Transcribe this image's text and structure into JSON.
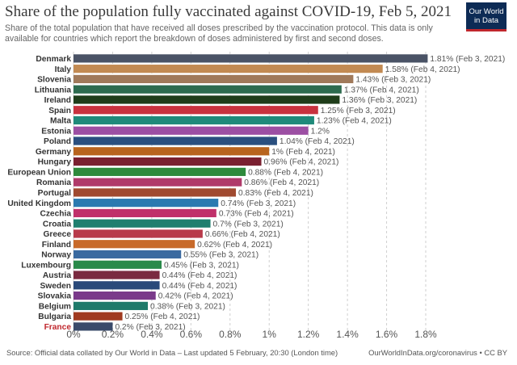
{
  "header": {
    "title": "Share of the population fully vaccinated against COVID-19, Feb 5, 2021",
    "subtitle": "Share of the total population that have received all doses prescribed by the vaccination protocol. This data is only available for countries which report the breakdown of doses administered by first and second doses.",
    "logo_line1": "Our World",
    "logo_line2": "in Data"
  },
  "footer": {
    "source": "Source: Official data collated by Our World in Data – Last updated 5 February, 20:30 (London time)",
    "credit": "OurWorldInData.org/coronavirus • CC BY"
  },
  "chart_data": {
    "type": "bar",
    "orientation": "horizontal",
    "title": "Share of the population fully vaccinated against COVID-19, Feb 5, 2021",
    "xlim": [
      0,
      1.8
    ],
    "xticks": [
      0,
      0.2,
      0.4,
      0.6,
      0.8,
      1.0,
      1.2,
      1.4,
      1.6,
      1.8
    ],
    "xtick_labels": [
      "0%",
      "0.2%",
      "0.4%",
      "0.6%",
      "0.8%",
      "1%",
      "1.2%",
      "1.4%",
      "1.6%",
      "1.8%"
    ],
    "grid": true,
    "highlight_color": "#c0272d",
    "bars": [
      {
        "label": "Denmark",
        "value": 1.81,
        "text": "1.81% (Feb 3, 2021)",
        "color": "#4a5366"
      },
      {
        "label": "Italy",
        "value": 1.58,
        "text": "1.58% (Feb 4, 2021)",
        "color": "#c28a52"
      },
      {
        "label": "Slovenia",
        "value": 1.43,
        "text": "1.43% (Feb 3, 2021)",
        "color": "#a0795a"
      },
      {
        "label": "Lithuania",
        "value": 1.37,
        "text": "1.37% (Feb 4, 2021)",
        "color": "#2d6b4f"
      },
      {
        "label": "Ireland",
        "value": 1.36,
        "text": "1.36% (Feb 3, 2021)",
        "color": "#1f3d1a"
      },
      {
        "label": "Spain",
        "value": 1.25,
        "text": "1.25% (Feb 3, 2021)",
        "color": "#c8323e"
      },
      {
        "label": "Malta",
        "value": 1.23,
        "text": "1.23% (Feb 4, 2021)",
        "color": "#1f8a7a"
      },
      {
        "label": "Estonia",
        "value": 1.2,
        "text": "1.2%",
        "color": "#9c4fa3"
      },
      {
        "label": "Poland",
        "value": 1.04,
        "text": "1.04% (Feb 4, 2021)",
        "color": "#2a4f7f"
      },
      {
        "label": "Germany",
        "value": 1.0,
        "text": "1% (Feb 4, 2021)",
        "color": "#b8641e"
      },
      {
        "label": "Hungary",
        "value": 0.96,
        "text": "0.96% (Feb 4, 2021)",
        "color": "#7a2030"
      },
      {
        "label": "European Union",
        "value": 0.88,
        "text": "0.88% (Feb 4, 2021)",
        "color": "#2e8a3c"
      },
      {
        "label": "Romania",
        "value": 0.86,
        "text": "0.86% (Feb 4, 2021)",
        "color": "#b03a6a"
      },
      {
        "label": "Portugal",
        "value": 0.83,
        "text": "0.83% (Feb 4, 2021)",
        "color": "#a04a30"
      },
      {
        "label": "United Kingdom",
        "value": 0.74,
        "text": "0.74% (Feb 3, 2021)",
        "color": "#2a7ab0"
      },
      {
        "label": "Czechia",
        "value": 0.73,
        "text": "0.73% (Feb 4, 2021)",
        "color": "#c0306a"
      },
      {
        "label": "Croatia",
        "value": 0.7,
        "text": "0.7% (Feb 3, 2021)",
        "color": "#1f7f6f"
      },
      {
        "label": "Greece",
        "value": 0.66,
        "text": "0.66% (Feb 4, 2021)",
        "color": "#b83a4a"
      },
      {
        "label": "Finland",
        "value": 0.62,
        "text": "0.62% (Feb 4, 2021)",
        "color": "#c86a2a"
      },
      {
        "label": "Norway",
        "value": 0.55,
        "text": "0.55% (Feb 3, 2021)",
        "color": "#3a6aa0"
      },
      {
        "label": "Luxembourg",
        "value": 0.45,
        "text": "0.45% (Feb 3, 2021)",
        "color": "#2a8a4a"
      },
      {
        "label": "Austria",
        "value": 0.44,
        "text": "0.44% (Feb 4, 2021)",
        "color": "#7a2a40"
      },
      {
        "label": "Sweden",
        "value": 0.44,
        "text": "0.44% (Feb 4, 2021)",
        "color": "#2a4a7a"
      },
      {
        "label": "Slovakia",
        "value": 0.42,
        "text": "0.42% (Feb 4, 2021)",
        "color": "#7a3a8a"
      },
      {
        "label": "Belgium",
        "value": 0.38,
        "text": "0.38% (Feb 3, 2021)",
        "color": "#1f7a6a"
      },
      {
        "label": "Bulgaria",
        "value": 0.25,
        "text": "0.25% (Feb 4, 2021)",
        "color": "#a03a20"
      },
      {
        "label": "France",
        "value": 0.2,
        "text": "0.2% (Feb 3, 2021)",
        "color": "#3a4a6a",
        "highlight": true
      }
    ]
  }
}
